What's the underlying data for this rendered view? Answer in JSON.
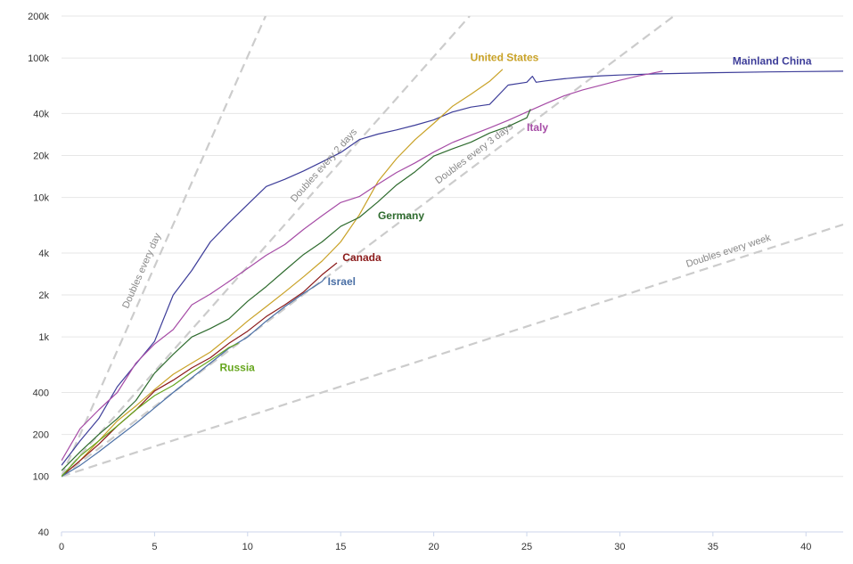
{
  "chart_data": {
    "type": "line",
    "title": "",
    "xlabel": "",
    "ylabel": "",
    "y_scale": "log",
    "xlim": [
      0,
      42
    ],
    "ylim": [
      40,
      200000
    ],
    "grid": true,
    "legend": "none",
    "x_ticks": [
      0,
      5,
      10,
      15,
      20,
      25,
      30,
      35,
      40
    ],
    "x_tick_labels": [
      "0",
      "5",
      "10",
      "15",
      "20",
      "25",
      "30",
      "35",
      "40"
    ],
    "y_ticks": [
      40,
      100,
      200,
      400,
      1000,
      2000,
      4000,
      10000,
      20000,
      40000,
      100000,
      200000
    ],
    "y_tick_labels": [
      "40",
      "100",
      "200",
      "400",
      "1k",
      "2k",
      "4k",
      "10k",
      "20k",
      "40k",
      "100k",
      "200k"
    ],
    "reference_lines": [
      {
        "label": "Doubles every day",
        "doubling_days": 1,
        "color": "#cccccc"
      },
      {
        "label": "Doubles every 2 days",
        "doubling_days": 2,
        "color": "#cccccc"
      },
      {
        "label": "Doubles every 3 days",
        "doubling_days": 3,
        "color": "#cccccc"
      },
      {
        "label": "Doubles every week",
        "doubling_days": 7,
        "color": "#cccccc"
      }
    ],
    "series": [
      {
        "name": "Mainland China",
        "color": "#3d3d99",
        "x": [
          0,
          1,
          2,
          3,
          4,
          5,
          6,
          7,
          8,
          9,
          10,
          11,
          12,
          13,
          14,
          15,
          16,
          17,
          18,
          19,
          20,
          21,
          22,
          23,
          24,
          25,
          25.3,
          25.5,
          26,
          27,
          28,
          29,
          30,
          32,
          35,
          38,
          42
        ],
        "y": [
          120,
          180,
          260,
          440,
          640,
          930,
          2000,
          3000,
          4800,
          6600,
          8900,
          12000,
          13500,
          15500,
          18000,
          21000,
          26000,
          28500,
          30500,
          33000,
          36000,
          41000,
          44500,
          46500,
          64000,
          67000,
          74000,
          67000,
          68500,
          71000,
          73000,
          74500,
          75500,
          77000,
          78500,
          79500,
          80500
        ]
      },
      {
        "name": "United States",
        "color": "#c9a227",
        "x": [
          0,
          1,
          2,
          3,
          4,
          5,
          6,
          7,
          8,
          9,
          10,
          11,
          12,
          13,
          14,
          15,
          16,
          17,
          18,
          19,
          20,
          21,
          22,
          23,
          23.7
        ],
        "y": [
          100,
          130,
          180,
          250,
          320,
          420,
          540,
          650,
          780,
          1000,
          1300,
          1650,
          2100,
          2700,
          3500,
          4800,
          7500,
          13000,
          19000,
          26000,
          34000,
          45000,
          55000,
          68000,
          83000
        ]
      },
      {
        "name": "Italy",
        "color": "#a64ca6",
        "x": [
          0,
          1,
          2,
          3,
          4,
          5,
          6,
          7,
          8,
          9,
          10,
          11,
          12,
          13,
          14,
          15,
          16,
          17,
          18,
          19,
          20,
          21,
          22,
          23,
          24,
          25,
          26,
          27,
          28,
          29,
          30,
          31,
          32.3
        ],
        "y": [
          130,
          220,
          300,
          400,
          650,
          890,
          1130,
          1700,
          2030,
          2500,
          3100,
          3850,
          4600,
          5900,
          7400,
          9200,
          10150,
          12450,
          15100,
          17700,
          21150,
          24750,
          27980,
          31500,
          35700,
          41000,
          47000,
          53500,
          59100,
          63900,
          69200,
          74400,
          80600
        ]
      },
      {
        "name": "Germany",
        "color": "#2e6b2e",
        "x": [
          0,
          1,
          2,
          3,
          4,
          5,
          6,
          7,
          8,
          9,
          10,
          11,
          12,
          13,
          14,
          15,
          16,
          17,
          18,
          19,
          20,
          21,
          22,
          23,
          24,
          25,
          25.2
        ],
        "y": [
          110,
          150,
          200,
          260,
          350,
          550,
          750,
          1000,
          1150,
          1350,
          1800,
          2300,
          3000,
          3900,
          4800,
          6200,
          7200,
          9300,
          12300,
          15300,
          19800,
          22300,
          24900,
          29000,
          32300,
          37300,
          43000
        ]
      },
      {
        "name": "Canada",
        "color": "#8b1a1a",
        "x": [
          0,
          1,
          2,
          3,
          4,
          5,
          6,
          7,
          8,
          9,
          10,
          11,
          12,
          13,
          14,
          14.8
        ],
        "y": [
          100,
          130,
          170,
          230,
          300,
          410,
          490,
          600,
          710,
          900,
          1100,
          1400,
          1700,
          2100,
          2790,
          3400
        ]
      },
      {
        "name": "Israel",
        "color": "#4a6fa5",
        "x": [
          0,
          1,
          2,
          3,
          4,
          5,
          6,
          7,
          8,
          9,
          10,
          11,
          12,
          13,
          14,
          14.2
        ],
        "y": [
          100,
          120,
          150,
          190,
          240,
          310,
          400,
          510,
          650,
          830,
          1000,
          1300,
          1650,
          2050,
          2500,
          2700
        ]
      },
      {
        "name": "Russia",
        "color": "#66a61e",
        "x": [
          0,
          1,
          2,
          3,
          4,
          5,
          6,
          7,
          8,
          9,
          9.5
        ],
        "y": [
          100,
          140,
          180,
          230,
          300,
          380,
          450,
          560,
          680,
          840,
          900
        ]
      }
    ]
  }
}
